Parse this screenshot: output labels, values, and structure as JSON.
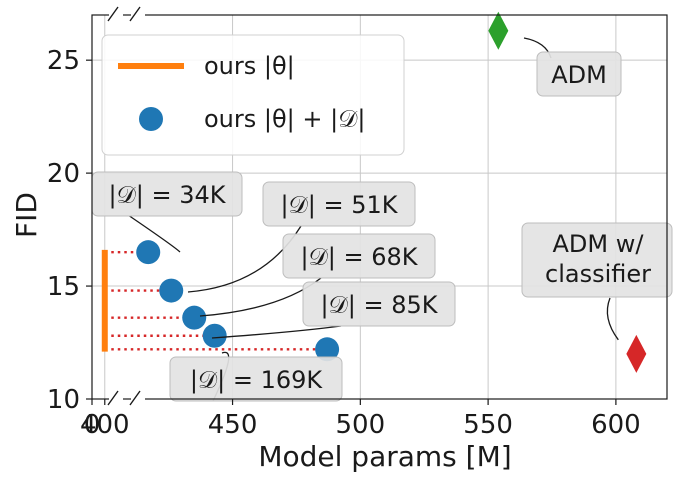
{
  "chart_data": {
    "type": "scatter",
    "xlabel": "Model params [M]",
    "ylabel": "FID",
    "xlim": [
      395,
      620
    ],
    "ylim": [
      10,
      27
    ],
    "x_ticks": [
      {
        "value": 0,
        "label": "0"
      },
      {
        "value": 400,
        "label": "400"
      },
      {
        "value": 450,
        "label": "450"
      },
      {
        "value": 500,
        "label": "500"
      },
      {
        "value": 550,
        "label": "550"
      },
      {
        "value": 600,
        "label": "600"
      }
    ],
    "y_ticks": [
      {
        "value": 10,
        "label": "10"
      },
      {
        "value": 15,
        "label": "15"
      },
      {
        "value": 20,
        "label": "20"
      },
      {
        "value": 25,
        "label": "25"
      }
    ],
    "axis_breaks": true,
    "grid": true,
    "legend_position": "top-left",
    "colors": {
      "ours_theta": "#ff7f0e",
      "ours_points": "#1f77b4",
      "adm": "#2ca02c",
      "adm_classifier": "#d62728",
      "dotted": "#d62728"
    },
    "series": [
      {
        "name": "ours |θ|",
        "marker": "vertical-line",
        "x": 400,
        "y_range": [
          12.1,
          16.6
        ]
      },
      {
        "name": "ours |θ| + |𝒟|",
        "marker": "circle",
        "points": [
          {
            "x": 417,
            "y": 16.5
          },
          {
            "x": 426,
            "y": 14.8
          },
          {
            "x": 435,
            "y": 13.6
          },
          {
            "x": 443,
            "y": 12.8
          },
          {
            "x": 487,
            "y": 12.2
          }
        ]
      },
      {
        "marker": "diamond",
        "points": [
          {
            "x": 554,
            "y": 26.3
          }
        ]
      },
      {
        "marker": "diamond",
        "points": [
          {
            "x": 608,
            "y": 12.0
          }
        ]
      }
    ],
    "annotations": [
      {
        "id": "d34",
        "text": "|𝒟| = 34K"
      },
      {
        "id": "d51",
        "text": "|𝒟| = 51K"
      },
      {
        "id": "d68",
        "text": "|𝒟| = 68K"
      },
      {
        "id": "d85",
        "text": "|𝒟| = 85K"
      },
      {
        "id": "d169",
        "text": "|𝒟| = 169K"
      },
      {
        "id": "adm",
        "text": "ADM"
      },
      {
        "id": "admc",
        "lines": [
          "ADM w/",
          "classifier"
        ]
      }
    ]
  }
}
